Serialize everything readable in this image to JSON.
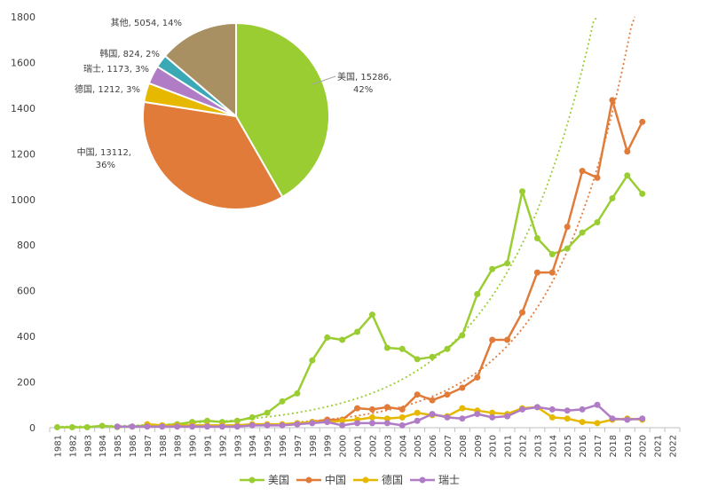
{
  "chart_data": [
    {
      "type": "line",
      "title": "",
      "xlabel": "",
      "ylabel": "",
      "ylim": [
        0,
        1800
      ],
      "yticks": [
        0,
        200,
        400,
        600,
        800,
        1000,
        1200,
        1400,
        1600,
        1800
      ],
      "grid": false,
      "legend_position": "bottom",
      "categories": [
        "1981",
        "1982",
        "1983",
        "1984",
        "1985",
        "1986",
        "1987",
        "1988",
        "1989",
        "1990",
        "1991",
        "1992",
        "1993",
        "1994",
        "1995",
        "1996",
        "1997",
        "1998",
        "1999",
        "2000",
        "2001",
        "2002",
        "2003",
        "2004",
        "2005",
        "2006",
        "2007",
        "2008",
        "2009",
        "2010",
        "2011",
        "2012",
        "2013",
        "2014",
        "2015",
        "2016",
        "2017",
        "2018",
        "2019",
        "2020",
        "2021",
        "2022"
      ],
      "series": [
        {
          "name": "美国",
          "color": "#9acd32",
          "trendline": "exponential",
          "values": [
            2,
            2,
            2,
            8,
            3,
            5,
            10,
            10,
            15,
            25,
            30,
            25,
            30,
            45,
            65,
            115,
            150,
            295,
            395,
            385,
            420,
            495,
            350,
            345,
            300,
            310,
            345,
            405,
            585,
            695,
            720,
            1035,
            830,
            760,
            785,
            855,
            900,
            1005,
            1105,
            1025,
            null,
            null
          ]
        },
        {
          "name": "中国",
          "color": "#e07b39",
          "trendline": "exponential",
          "values": [
            null,
            null,
            null,
            null,
            null,
            null,
            null,
            null,
            null,
            null,
            null,
            null,
            null,
            null,
            null,
            null,
            15,
            25,
            35,
            35,
            85,
            80,
            90,
            80,
            145,
            120,
            145,
            175,
            220,
            385,
            385,
            505,
            680,
            680,
            880,
            1125,
            1095,
            1435,
            1210,
            1340,
            null,
            null
          ]
        },
        {
          "name": "德国",
          "color": "#e6b800",
          "values": [
            null,
            null,
            null,
            null,
            null,
            null,
            15,
            10,
            10,
            10,
            10,
            10,
            10,
            15,
            15,
            15,
            20,
            25,
            25,
            30,
            35,
            45,
            40,
            45,
            65,
            55,
            50,
            85,
            75,
            65,
            60,
            85,
            90,
            45,
            40,
            25,
            20,
            35,
            40,
            35,
            null,
            null
          ]
        },
        {
          "name": "瑞士",
          "color": "#b07cc6",
          "values": [
            null,
            null,
            null,
            null,
            5,
            5,
            5,
            5,
            5,
            5,
            5,
            5,
            5,
            10,
            10,
            10,
            15,
            20,
            25,
            10,
            20,
            20,
            20,
            10,
            30,
            60,
            45,
            40,
            60,
            45,
            50,
            80,
            90,
            80,
            75,
            80,
            100,
            40,
            35,
            40,
            null,
            null
          ]
        }
      ]
    },
    {
      "type": "pie",
      "slices": [
        {
          "label": "美国",
          "value": 15286,
          "percent": "42%",
          "color": "#9acd32"
        },
        {
          "label": "中国",
          "value": 13112,
          "percent": "36%",
          "color": "#e07b39"
        },
        {
          "label": "德国",
          "value": 1212,
          "percent": "3%",
          "color": "#e6b800"
        },
        {
          "label": "瑞士",
          "value": 1173,
          "percent": "3%",
          "color": "#b07cc6"
        },
        {
          "label": "韩国",
          "value": 824,
          "percent": "2%",
          "color": "#3ba9b5"
        },
        {
          "label": "其他",
          "value": 5054,
          "percent": "14%",
          "color": "#a89063"
        }
      ]
    }
  ]
}
